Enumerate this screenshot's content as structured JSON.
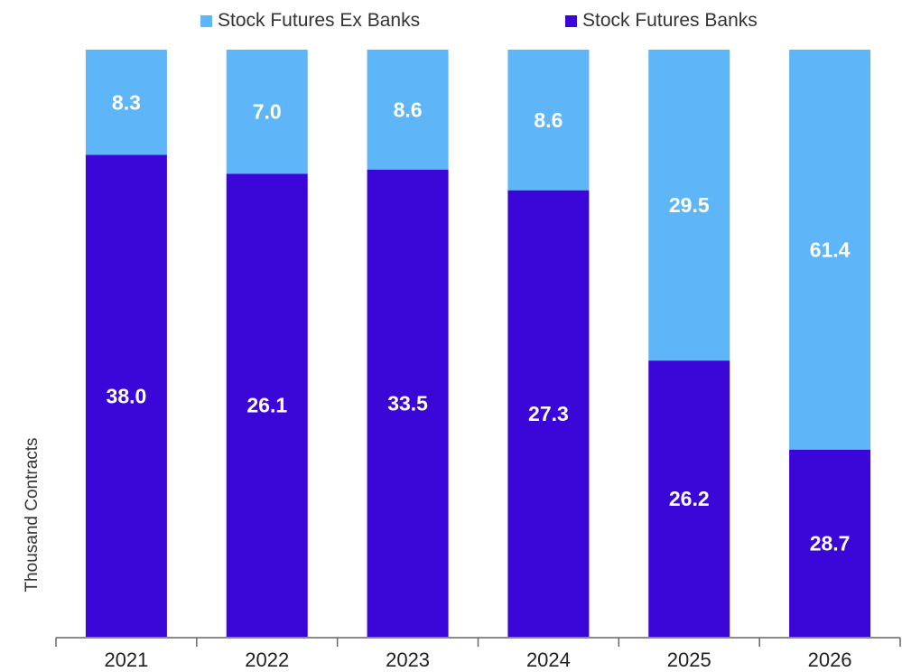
{
  "colors": {
    "ex_banks": "#5eb6f8",
    "banks": "#3b06d8",
    "label_light": "#ffffff",
    "axis": "#666666",
    "tick_text": "#222222",
    "legend_text": "#333333"
  },
  "chart_data": {
    "type": "bar",
    "stacked": true,
    "normalized_to_100_percent": true,
    "categories": [
      "2021",
      "2022",
      "2023",
      "2024",
      "2025",
      "2026"
    ],
    "series": [
      {
        "name": "Stock Futures Banks",
        "values": [
          38.0,
          26.1,
          33.5,
          27.3,
          26.2,
          28.7
        ],
        "labels": [
          "38.0",
          "26.1",
          "33.5",
          "27.3",
          "26.2",
          "28.7"
        ]
      },
      {
        "name": "Stock Futures Ex Banks",
        "values": [
          8.3,
          7.0,
          8.6,
          8.6,
          29.5,
          61.4
        ],
        "labels": [
          "8.3",
          "7.0",
          "8.6",
          "8.6",
          "29.5",
          "61.4"
        ]
      }
    ],
    "ylabel": "Thousand Contracts",
    "xlabel": "",
    "title": "",
    "legend_position": "top"
  }
}
